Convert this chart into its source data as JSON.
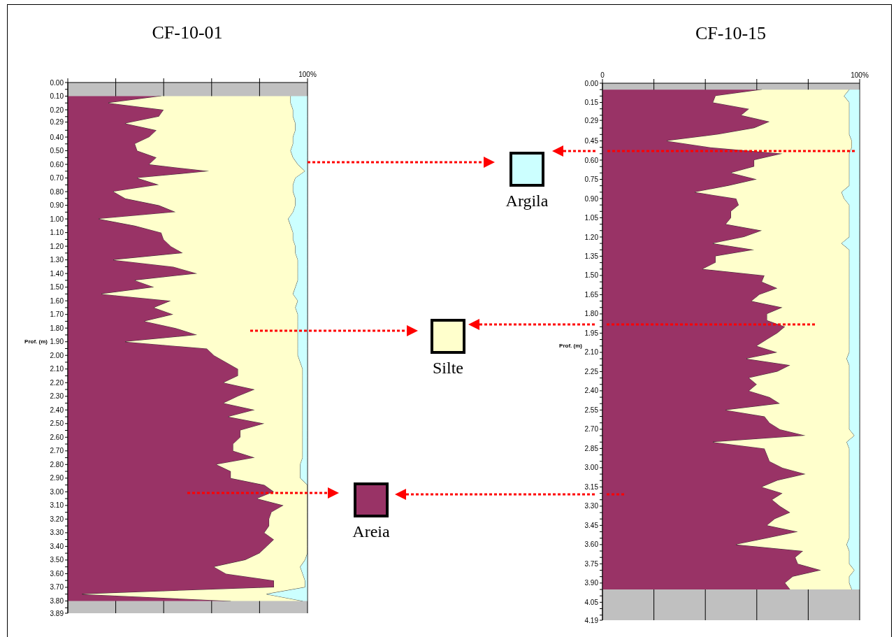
{
  "chart_data": [
    {
      "type": "area",
      "title": "CF-10-01",
      "ylabel": "Prof. (m)",
      "orientation": "horizontal",
      "stacked": true,
      "grid": "x",
      "legend": "right",
      "x": [
        0.1,
        0.15,
        0.2,
        0.25,
        0.3,
        0.35,
        0.4,
        0.45,
        0.5,
        0.55,
        0.6,
        0.65,
        0.7,
        0.75,
        0.8,
        0.85,
        0.9,
        0.95,
        1.0,
        1.05,
        1.1,
        1.15,
        1.2,
        1.25,
        1.3,
        1.35,
        1.4,
        1.45,
        1.5,
        1.55,
        1.6,
        1.65,
        1.7,
        1.75,
        1.8,
        1.85,
        1.9,
        1.95,
        2.0,
        2.05,
        2.1,
        2.15,
        2.2,
        2.25,
        2.3,
        2.35,
        2.4,
        2.45,
        2.5,
        2.55,
        2.6,
        2.65,
        2.7,
        2.75,
        2.8,
        2.85,
        2.9,
        2.95,
        3.0,
        3.05,
        3.1,
        3.15,
        3.2,
        3.25,
        3.3,
        3.35,
        3.4,
        3.45,
        3.5,
        3.55,
        3.6,
        3.65,
        3.7,
        3.75,
        3.8
      ],
      "series": [
        {
          "name": "Areia",
          "color": "#993366",
          "values": [
            39,
            17,
            40,
            38,
            24,
            37,
            34,
            28,
            29,
            37,
            34,
            59,
            29,
            38,
            19,
            24,
            38,
            45,
            13,
            28,
            39,
            40,
            43,
            48,
            19,
            44,
            54,
            28,
            36,
            14,
            43,
            36,
            44,
            32,
            45,
            54,
            24,
            58,
            61,
            66,
            71,
            71,
            65,
            78,
            71,
            65,
            78,
            67,
            82,
            72,
            72,
            69,
            69,
            78,
            62,
            68,
            68,
            82,
            86,
            79,
            90,
            85,
            84,
            84,
            82,
            86,
            83,
            80,
            74,
            61,
            66,
            86,
            86,
            6,
            68
          ]
        },
        {
          "name": "Silte",
          "color": "#ffffcc",
          "values": [
            54,
            76,
            54,
            56,
            71,
            58,
            60,
            66,
            64,
            57,
            62,
            40,
            66,
            56,
            75,
            71,
            57,
            49,
            79,
            65,
            55,
            54,
            52,
            47,
            77,
            52,
            42,
            68,
            59,
            80,
            53,
            59,
            52,
            64,
            51,
            42,
            72,
            38,
            35,
            31,
            27,
            27,
            33,
            20,
            27,
            33,
            20,
            31,
            16,
            26,
            26,
            29,
            29,
            20,
            35,
            29,
            29,
            18,
            14,
            21,
            10,
            15,
            16,
            16,
            18,
            14,
            17,
            20,
            25,
            36,
            32,
            13,
            13,
            77,
            30
          ]
        },
        {
          "name": "Argila",
          "color": "#ccffff",
          "values": [
            7,
            7,
            6,
            6,
            5,
            5,
            6,
            6,
            7,
            6,
            4,
            1,
            5,
            6,
            6,
            5,
            5,
            6,
            8,
            7,
            6,
            6,
            5,
            5,
            4,
            4,
            4,
            4,
            5,
            6,
            4,
            5,
            4,
            4,
            4,
            4,
            4,
            4,
            4,
            3,
            2,
            2,
            2,
            2,
            2,
            2,
            2,
            2,
            2,
            2,
            2,
            2,
            2,
            2,
            3,
            3,
            3,
            0,
            0,
            0,
            0,
            0,
            0,
            0,
            0,
            0,
            0,
            0,
            1,
            3,
            2,
            1,
            1,
            17,
            2
          ]
        }
      ],
      "xlim": [
        0,
        100
      ],
      "xticks": [
        {
          "value": 0,
          "label": null
        },
        {
          "value": 20,
          "label": null
        },
        {
          "value": 40,
          "label": null
        },
        {
          "value": 60,
          "label": null
        },
        {
          "value": 80,
          "label": null
        },
        {
          "value": 100,
          "label": "100%"
        }
      ],
      "ylim": [
        3.89,
        0
      ],
      "yticks": [
        {
          "value": 0,
          "label": "0.00"
        },
        {
          "value": 0.05,
          "label": null
        },
        {
          "value": 0.1,
          "label": "0.10"
        },
        {
          "value": 0.15,
          "label": null
        },
        {
          "value": 0.2,
          "label": "0.20"
        },
        {
          "value": 0.25,
          "label": null
        },
        {
          "value": 0.29,
          "label": "0.29"
        },
        {
          "value": 0.35,
          "label": null
        },
        {
          "value": 0.4,
          "label": "0.40"
        },
        {
          "value": 0.45,
          "label": null
        },
        {
          "value": 0.5,
          "label": "0.50"
        },
        {
          "value": 0.55,
          "label": null
        },
        {
          "value": 0.6,
          "label": "0.60"
        },
        {
          "value": 0.65,
          "label": null
        },
        {
          "value": 0.7,
          "label": "0.70"
        },
        {
          "value": 0.75,
          "label": null
        },
        {
          "value": 0.8,
          "label": "0.80"
        },
        {
          "value": 0.85,
          "label": null
        },
        {
          "value": 0.9,
          "label": "0.90"
        },
        {
          "value": 0.95,
          "label": null
        },
        {
          "value": 1.0,
          "label": "1.00"
        },
        {
          "value": 1.05,
          "label": null
        },
        {
          "value": 1.1,
          "label": "1.10"
        },
        {
          "value": 1.15,
          "label": null
        },
        {
          "value": 1.2,
          "label": "1.20"
        },
        {
          "value": 1.25,
          "label": null
        },
        {
          "value": 1.3,
          "label": "1.30"
        },
        {
          "value": 1.35,
          "label": null
        },
        {
          "value": 1.4,
          "label": "1.40"
        },
        {
          "value": 1.45,
          "label": null
        },
        {
          "value": 1.5,
          "label": "1.50"
        },
        {
          "value": 1.55,
          "label": null
        },
        {
          "value": 1.6,
          "label": "1.60"
        },
        {
          "value": 1.65,
          "label": null
        },
        {
          "value": 1.7,
          "label": "1.70"
        },
        {
          "value": 1.75,
          "label": null
        },
        {
          "value": 1.8,
          "label": "1.80"
        },
        {
          "value": 1.85,
          "label": null
        },
        {
          "value": 1.9,
          "label": "1.90"
        },
        {
          "value": 1.95,
          "label": null
        },
        {
          "value": 2.0,
          "label": "2.00"
        },
        {
          "value": 2.05,
          "label": null
        },
        {
          "value": 2.1,
          "label": "2.10"
        },
        {
          "value": 2.15,
          "label": null
        },
        {
          "value": 2.2,
          "label": "2.20"
        },
        {
          "value": 2.25,
          "label": null
        },
        {
          "value": 2.3,
          "label": "2.30"
        },
        {
          "value": 2.35,
          "label": null
        },
        {
          "value": 2.4,
          "label": "2.40"
        },
        {
          "value": 2.45,
          "label": null
        },
        {
          "value": 2.5,
          "label": "2.50"
        },
        {
          "value": 2.55,
          "label": null
        },
        {
          "value": 2.6,
          "label": "2.60"
        },
        {
          "value": 2.65,
          "label": null
        },
        {
          "value": 2.7,
          "label": "2.70"
        },
        {
          "value": 2.75,
          "label": null
        },
        {
          "value": 2.8,
          "label": "2.80"
        },
        {
          "value": 2.85,
          "label": null
        },
        {
          "value": 2.9,
          "label": "2.90"
        },
        {
          "value": 2.95,
          "label": null
        },
        {
          "value": 3.0,
          "label": "3.00"
        },
        {
          "value": 3.05,
          "label": null
        },
        {
          "value": 3.1,
          "label": "3.10"
        },
        {
          "value": 3.15,
          "label": null
        },
        {
          "value": 3.2,
          "label": "3.20"
        },
        {
          "value": 3.25,
          "label": null
        },
        {
          "value": 3.3,
          "label": "3.30"
        },
        {
          "value": 3.35,
          "label": null
        },
        {
          "value": 3.4,
          "label": "3.40"
        },
        {
          "value": 3.45,
          "label": null
        },
        {
          "value": 3.5,
          "label": "3.50"
        },
        {
          "value": 3.55,
          "label": null
        },
        {
          "value": 3.6,
          "label": "3.60"
        },
        {
          "value": 3.65,
          "label": null
        },
        {
          "value": 3.7,
          "label": "3.70"
        },
        {
          "value": 3.75,
          "label": null
        },
        {
          "value": 3.8,
          "label": "3.80"
        },
        {
          "value": 3.85,
          "label": null
        },
        {
          "value": 3.89,
          "label": "3.89"
        }
      ]
    },
    {
      "type": "area",
      "title": "CF-10-15",
      "ylabel": "Prof. (m)",
      "orientation": "horizontal",
      "stacked": true,
      "grid": "x",
      "x": [
        0.05,
        0.1,
        0.15,
        0.2,
        0.25,
        0.3,
        0.35,
        0.4,
        0.45,
        0.5,
        0.55,
        0.6,
        0.65,
        0.7,
        0.75,
        0.8,
        0.85,
        0.9,
        0.95,
        1.0,
        1.05,
        1.1,
        1.15,
        1.2,
        1.25,
        1.3,
        1.35,
        1.4,
        1.45,
        1.5,
        1.55,
        1.6,
        1.65,
        1.7,
        1.75,
        1.8,
        1.85,
        1.9,
        1.95,
        2.0,
        2.05,
        2.1,
        2.15,
        2.2,
        2.25,
        2.3,
        2.35,
        2.4,
        2.45,
        2.5,
        2.55,
        2.6,
        2.65,
        2.7,
        2.75,
        2.8,
        2.85,
        2.9,
        2.95,
        3.0,
        3.05,
        3.1,
        3.15,
        3.2,
        3.25,
        3.3,
        3.35,
        3.4,
        3.45,
        3.5,
        3.55,
        3.6,
        3.65,
        3.7,
        3.75,
        3.8,
        3.85,
        3.9,
        3.95
      ],
      "series": [
        {
          "color": "#993366",
          "values": [
            62,
            44,
            43,
            57,
            54,
            65,
            59,
            45,
            25,
            42,
            70,
            59,
            59,
            50,
            60,
            49,
            36,
            52,
            53,
            50,
            50,
            48,
            62,
            55,
            43,
            59,
            44,
            44,
            39,
            63,
            62,
            68,
            61,
            58,
            70,
            64,
            64,
            71,
            68,
            64,
            60,
            68,
            56,
            73,
            68,
            57,
            60,
            57,
            65,
            69,
            48,
            63,
            65,
            69,
            79,
            43,
            63,
            64,
            65,
            70,
            79,
            68,
            62,
            70,
            66,
            69,
            73,
            67,
            64,
            76,
            64,
            52,
            78,
            75,
            76,
            85,
            74,
            71,
            73
          ]
        },
        {
          "color": "#ffffcc",
          "values": [
            34,
            50,
            53,
            39,
            42,
            31,
            37,
            51,
            72,
            55,
            26,
            37,
            37,
            46,
            36,
            47,
            57,
            42,
            43,
            46,
            46,
            48,
            34,
            41,
            50,
            37,
            52,
            52,
            57,
            33,
            34,
            28,
            35,
            38,
            26,
            32,
            32,
            25,
            28,
            32,
            36,
            28,
            39,
            23,
            28,
            39,
            36,
            39,
            31,
            27,
            48,
            33,
            31,
            27,
            19,
            52,
            33,
            32,
            31,
            26,
            17,
            28,
            34,
            26,
            30,
            27,
            23,
            29,
            32,
            20,
            32,
            43,
            18,
            21,
            20,
            13,
            22,
            25,
            24
          ]
        },
        {
          "color": "#ccffff",
          "values": [
            4,
            6,
            4,
            4,
            4,
            4,
            4,
            4,
            3,
            3,
            4,
            4,
            4,
            4,
            4,
            4,
            7,
            6,
            4,
            4,
            4,
            4,
            4,
            4,
            7,
            4,
            4,
            4,
            4,
            4,
            4,
            4,
            4,
            4,
            4,
            4,
            4,
            4,
            4,
            4,
            4,
            4,
            5,
            4,
            4,
            4,
            4,
            4,
            4,
            4,
            4,
            4,
            4,
            4,
            2,
            5,
            4,
            4,
            4,
            4,
            4,
            4,
            4,
            4,
            4,
            4,
            4,
            4,
            4,
            4,
            4,
            5,
            4,
            4,
            4,
            2,
            4,
            4,
            3
          ]
        }
      ],
      "xlim": [
        0,
        100
      ],
      "xticks": [
        {
          "value": 0,
          "label": "0"
        },
        {
          "value": 20,
          "label": null
        },
        {
          "value": 40,
          "label": null
        },
        {
          "value": 60,
          "label": null
        },
        {
          "value": 80,
          "label": null
        },
        {
          "value": 100,
          "label": "100%"
        }
      ],
      "ylim": [
        4.19,
        0
      ],
      "yticks": [
        {
          "value": 0,
          "label": "0.00"
        },
        {
          "value": 0.05,
          "label": null
        },
        {
          "value": 0.1,
          "label": null
        },
        {
          "value": 0.15,
          "label": "0.15"
        },
        {
          "value": 0.2,
          "label": null
        },
        {
          "value": 0.25,
          "label": null
        },
        {
          "value": 0.29,
          "label": "0.29"
        },
        {
          "value": 0.35,
          "label": null
        },
        {
          "value": 0.4,
          "label": null
        },
        {
          "value": 0.45,
          "label": "0.45"
        },
        {
          "value": 0.5,
          "label": null
        },
        {
          "value": 0.55,
          "label": null
        },
        {
          "value": 0.6,
          "label": "0.60"
        },
        {
          "value": 0.65,
          "label": null
        },
        {
          "value": 0.7,
          "label": null
        },
        {
          "value": 0.75,
          "label": "0.75"
        },
        {
          "value": 0.8,
          "label": null
        },
        {
          "value": 0.85,
          "label": null
        },
        {
          "value": 0.9,
          "label": "0.90"
        },
        {
          "value": 0.95,
          "label": null
        },
        {
          "value": 1.0,
          "label": null
        },
        {
          "value": 1.05,
          "label": "1.05"
        },
        {
          "value": 1.1,
          "label": null
        },
        {
          "value": 1.15,
          "label": null
        },
        {
          "value": 1.2,
          "label": "1.20"
        },
        {
          "value": 1.25,
          "label": null
        },
        {
          "value": 1.3,
          "label": null
        },
        {
          "value": 1.35,
          "label": "1.35"
        },
        {
          "value": 1.4,
          "label": null
        },
        {
          "value": 1.45,
          "label": null
        },
        {
          "value": 1.5,
          "label": "1.50"
        },
        {
          "value": 1.55,
          "label": null
        },
        {
          "value": 1.6,
          "label": null
        },
        {
          "value": 1.65,
          "label": "1.65"
        },
        {
          "value": 1.7,
          "label": null
        },
        {
          "value": 1.75,
          "label": null
        },
        {
          "value": 1.8,
          "label": "1.80"
        },
        {
          "value": 1.85,
          "label": null
        },
        {
          "value": 1.9,
          "label": null
        },
        {
          "value": 1.95,
          "label": "1.95"
        },
        {
          "value": 2.0,
          "label": null
        },
        {
          "value": 2.05,
          "label": null
        },
        {
          "value": 2.1,
          "label": "2.10"
        },
        {
          "value": 2.15,
          "label": null
        },
        {
          "value": 2.2,
          "label": null
        },
        {
          "value": 2.25,
          "label": "2.25"
        },
        {
          "value": 2.3,
          "label": null
        },
        {
          "value": 2.35,
          "label": null
        },
        {
          "value": 2.4,
          "label": "2.40"
        },
        {
          "value": 2.45,
          "label": null
        },
        {
          "value": 2.5,
          "label": null
        },
        {
          "value": 2.55,
          "label": "2.55"
        },
        {
          "value": 2.6,
          "label": null
        },
        {
          "value": 2.65,
          "label": null
        },
        {
          "value": 2.7,
          "label": "2.70"
        },
        {
          "value": 2.75,
          "label": null
        },
        {
          "value": 2.8,
          "label": null
        },
        {
          "value": 2.85,
          "label": "2.85"
        },
        {
          "value": 2.9,
          "label": null
        },
        {
          "value": 2.95,
          "label": null
        },
        {
          "value": 3.0,
          "label": "3.00"
        },
        {
          "value": 3.05,
          "label": null
        },
        {
          "value": 3.1,
          "label": null
        },
        {
          "value": 3.15,
          "label": "3.15"
        },
        {
          "value": 3.2,
          "label": null
        },
        {
          "value": 3.25,
          "label": null
        },
        {
          "value": 3.3,
          "label": "3.30"
        },
        {
          "value": 3.35,
          "label": null
        },
        {
          "value": 3.4,
          "label": null
        },
        {
          "value": 3.45,
          "label": "3.45"
        },
        {
          "value": 3.5,
          "label": null
        },
        {
          "value": 3.55,
          "label": null
        },
        {
          "value": 3.6,
          "label": "3.60"
        },
        {
          "value": 3.65,
          "label": null
        },
        {
          "value": 3.7,
          "label": null
        },
        {
          "value": 3.75,
          "label": "3.75"
        },
        {
          "value": 3.8,
          "label": null
        },
        {
          "value": 3.85,
          "label": null
        },
        {
          "value": 3.9,
          "label": "3.90"
        },
        {
          "value": 3.95,
          "label": null
        },
        {
          "value": 4.0,
          "label": null
        },
        {
          "value": 4.05,
          "label": "4.05"
        },
        {
          "value": 4.1,
          "label": null
        },
        {
          "value": 4.15,
          "label": null
        },
        {
          "value": 4.19,
          "label": "4.19"
        }
      ]
    }
  ]
}
